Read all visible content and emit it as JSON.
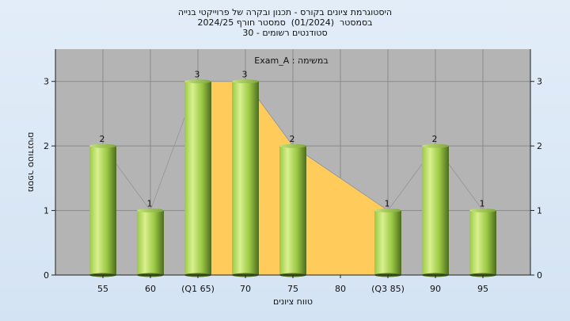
{
  "chart_data": {
    "type": "bar",
    "title_lines": [
      "היסטוגרמת ציונים בקורס - תכנון ובקרה של פרוייקטי בנייה",
      "בסמסטר  (01/2024)  סמסטר חורף 2024/25",
      "סטודנטים רשומים - 30"
    ],
    "xlabel": "טווח ציונים",
    "ylabel": "מספר סטודנטים",
    "annotation": "Exam_A : במשימה",
    "categories": [
      "55",
      "60",
      "(Q1 65)",
      "70",
      "75",
      "80",
      "(Q3 85)",
      "90",
      "95"
    ],
    "values": [
      2,
      1,
      3,
      3,
      2,
      null,
      1,
      2,
      1
    ],
    "value_labels": [
      "2",
      "1",
      "3",
      "3",
      "2",
      "",
      "1",
      "2",
      "1"
    ],
    "ylim": [
      0,
      3.5
    ],
    "yticks": [
      0,
      1,
      2,
      3
    ],
    "grid": true,
    "secondary_y_axis": true,
    "iqr_band": {
      "from_category": "(Q1 65)",
      "to_category": "(Q3 85)"
    },
    "colors": {
      "plot_bg": "#b4b4b4",
      "bar_light": "#d9f08f",
      "bar_mid": "#9ac843",
      "bar_dark": "#4d6b1f",
      "band": "#ffcc5c"
    }
  }
}
